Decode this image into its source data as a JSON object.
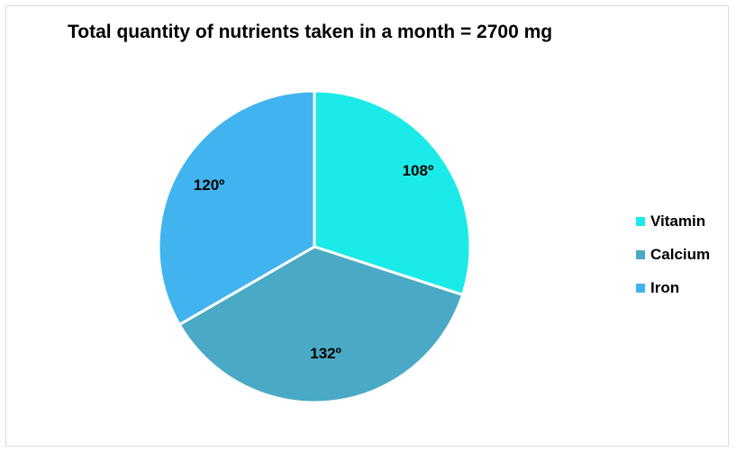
{
  "chart_data": {
    "type": "pie",
    "title": "Total quantity of nutrients taken in a month = 2700 mg",
    "slices": [
      {
        "name": "Vitamin",
        "value": 108,
        "label": "108º",
        "color": "#1bebe8"
      },
      {
        "name": "Calcium",
        "value": 132,
        "label": "132º",
        "color": "#4aaac5"
      },
      {
        "name": "Iron",
        "value": 120,
        "label": "120º",
        "color": "#41b4f0"
      }
    ],
    "legend_position": "right"
  }
}
